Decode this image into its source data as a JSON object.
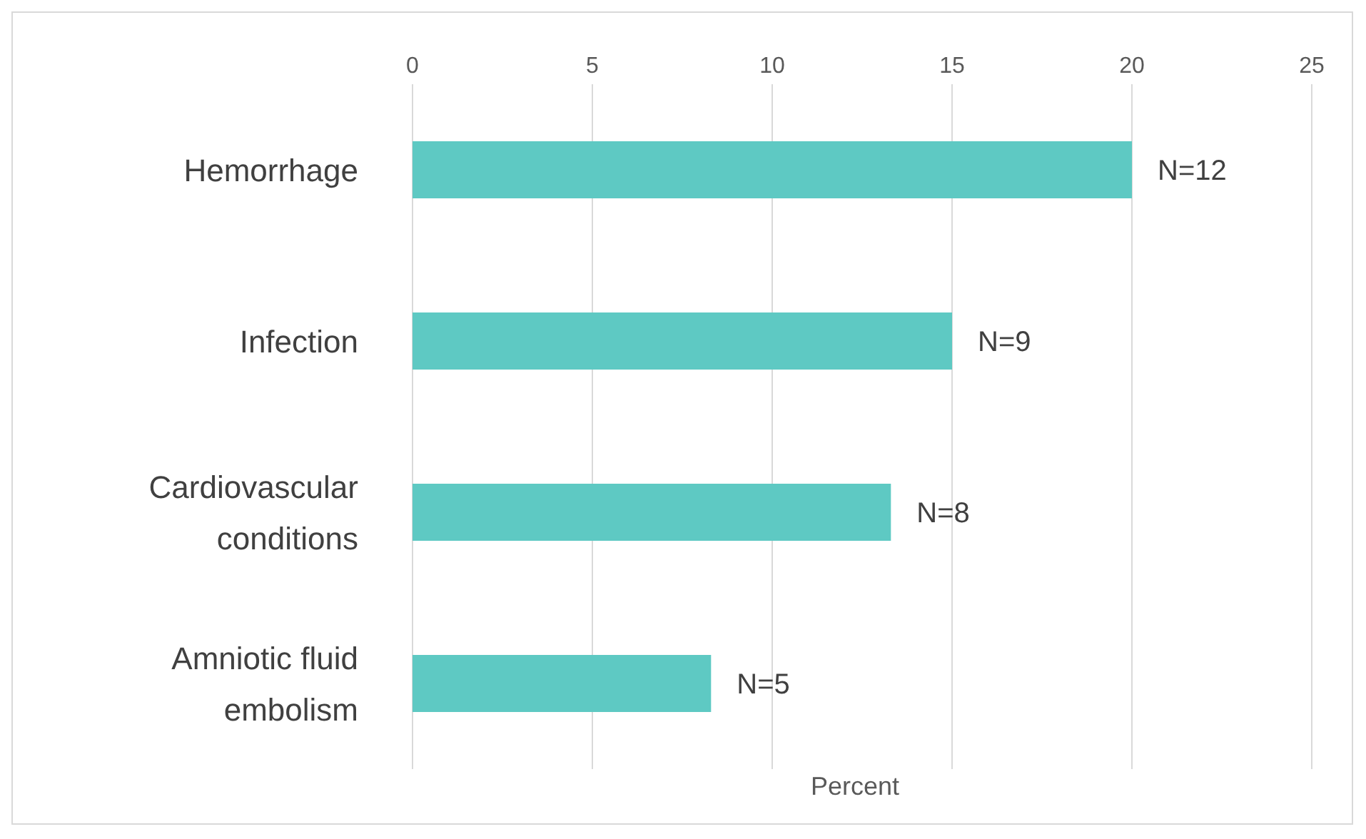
{
  "chart_data": {
    "type": "bar",
    "orientation": "horizontal",
    "xlabel": "Percent",
    "categories": [
      "Hemorrhage",
      "Infection",
      "Cardiovascular conditions",
      "Amniotic fluid embolism"
    ],
    "values": [
      20,
      15,
      13.3,
      8.3
    ],
    "annotations": [
      {
        "text": "N=12",
        "x": 20,
        "y": "Hemorrhage"
      },
      {
        "text": "N=9",
        "x": 15,
        "y": "Infection"
      },
      {
        "text": "N=8",
        "x": 13.3,
        "y": "Cardiovascular conditions"
      },
      {
        "text": "N=5",
        "x": 8.3,
        "y": "Amniotic fluid embolism"
      }
    ],
    "color": "#5ec9c3",
    "xlim": [
      0,
      25
    ],
    "xticks": [
      0,
      5,
      10,
      15,
      20,
      25
    ],
    "grid": "x",
    "legend": false
  }
}
